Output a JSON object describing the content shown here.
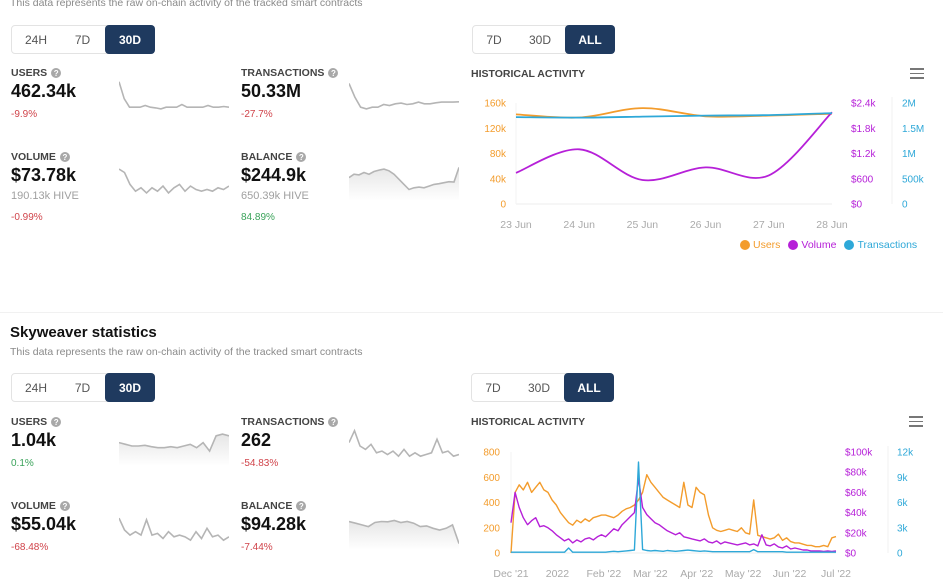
{
  "colors": {
    "users": "#f39c2c",
    "volume": "#b620d8",
    "transactions": "#2ea8d8",
    "active_button": "#1f3a5f",
    "negative": "#d0434a",
    "positive": "#3aa35a"
  },
  "section1": {
    "subtitle": "This data represents the raw on-chain activity of the tracked smart contracts",
    "period_buttons": [
      {
        "label": "24H",
        "active": false
      },
      {
        "label": "7D",
        "active": false
      },
      {
        "label": "30D",
        "active": true
      }
    ],
    "range_buttons": [
      {
        "label": "7D",
        "active": false
      },
      {
        "label": "30D",
        "active": false
      },
      {
        "label": "ALL",
        "active": true
      }
    ],
    "stats": {
      "users": {
        "label": "USERS",
        "value": "462.34k",
        "change": "-9.9%",
        "trend": "negative"
      },
      "transactions": {
        "label": "TRANSACTIONS",
        "value": "50.33M",
        "change": "-27.7%",
        "trend": "negative"
      },
      "volume": {
        "label": "VOLUME",
        "value": "$73.78k",
        "sub": "190.13k HIVE",
        "change": "-0.99%",
        "trend": "negative"
      },
      "balance": {
        "label": "BALANCE",
        "value": "$244.9k",
        "sub": "650.39k HIVE",
        "change": "84.89%",
        "trend": "positive"
      }
    },
    "historical_title": "HISTORICAL ACTIVITY",
    "menu_icon": "hamburger-menu-icon",
    "legend": [
      "Users",
      "Volume",
      "Transactions"
    ]
  },
  "section2": {
    "title": "Skyweaver statistics",
    "subtitle": "This data represents the raw on-chain activity of the tracked smart contracts",
    "period_buttons": [
      {
        "label": "24H",
        "active": false
      },
      {
        "label": "7D",
        "active": false
      },
      {
        "label": "30D",
        "active": true
      }
    ],
    "range_buttons": [
      {
        "label": "7D",
        "active": false
      },
      {
        "label": "30D",
        "active": false
      },
      {
        "label": "ALL",
        "active": true
      }
    ],
    "stats": {
      "users": {
        "label": "USERS",
        "value": "1.04k",
        "change": "0.1%",
        "trend": "positive"
      },
      "transactions": {
        "label": "TRANSACTIONS",
        "value": "262",
        "change": "-54.83%",
        "trend": "negative"
      },
      "volume": {
        "label": "VOLUME",
        "value": "$55.04k",
        "change": "-68.48%",
        "trend": "negative"
      },
      "balance": {
        "label": "BALANCE",
        "value": "$94.28k",
        "change": "-7.44%",
        "trend": "negative"
      }
    },
    "historical_title": "HISTORICAL ACTIVITY",
    "menu_icon": "hamburger-menu-icon"
  },
  "sparklines": {
    "s1_users": [
      0.95,
      0.45,
      0.2,
      0.2,
      0.2,
      0.25,
      0.2,
      0.18,
      0.15,
      0.2,
      0.2,
      0.2,
      0.28,
      0.2,
      0.2,
      0.2,
      0.2,
      0.25,
      0.2,
      0.2,
      0.22,
      0.2
    ],
    "s1_transactions": [
      0.9,
      0.5,
      0.2,
      0.15,
      0.2,
      0.2,
      0.28,
      0.25,
      0.3,
      0.32,
      0.28,
      0.3,
      0.35,
      0.3,
      0.3,
      0.33,
      0.35,
      0.35,
      0.35,
      0.36
    ],
    "s1_volume": [
      0.85,
      0.75,
      0.4,
      0.2,
      0.3,
      0.15,
      0.3,
      0.2,
      0.35,
      0.15,
      0.3,
      0.4,
      0.2,
      0.35,
      0.25,
      0.2,
      0.25,
      0.2,
      0.3,
      0.25,
      0.35
    ],
    "s1_balance": [
      0.6,
      0.7,
      0.68,
      0.75,
      0.7,
      0.78,
      0.82,
      0.85,
      0.8,
      0.7,
      0.55,
      0.4,
      0.25,
      0.3,
      0.32,
      0.3,
      0.35,
      0.4,
      0.42,
      0.45,
      0.48,
      0.47,
      0.9
    ],
    "s2_users": [
      0.6,
      0.55,
      0.5,
      0.5,
      0.52,
      0.48,
      0.45,
      0.45,
      0.48,
      0.45,
      0.5,
      0.55,
      0.45,
      0.6,
      0.35,
      0.8,
      0.85,
      0.8
    ],
    "s2_transactions": [
      0.6,
      0.95,
      0.5,
      0.4,
      0.55,
      0.3,
      0.35,
      0.25,
      0.35,
      0.2,
      0.4,
      0.2,
      0.3,
      0.2,
      0.25,
      0.3,
      0.7,
      0.3,
      0.35,
      0.2,
      0.25
    ],
    "s2_volume": [
      0.85,
      0.5,
      0.35,
      0.45,
      0.35,
      0.8,
      0.35,
      0.4,
      0.25,
      0.45,
      0.3,
      0.35,
      0.3,
      0.2,
      0.45,
      0.25,
      0.55,
      0.3,
      0.35,
      0.2,
      0.3
    ],
    "s2_balance": [
      0.75,
      0.7,
      0.65,
      0.6,
      0.72,
      0.75,
      0.74,
      0.78,
      0.72,
      0.75,
      0.7,
      0.6,
      0.62,
      0.55,
      0.5,
      0.55,
      0.65,
      0.1
    ]
  },
  "chart_data": [
    {
      "type": "line",
      "title": "HISTORICAL ACTIVITY",
      "x": [
        "23 Jun",
        "24 Jun",
        "25 Jun",
        "26 Jun",
        "27 Jun",
        "28 Jun"
      ],
      "axes": {
        "users": {
          "ticks": [
            "0",
            "40k",
            "80k",
            "120k",
            "160k"
          ],
          "range": [
            0,
            160000
          ]
        },
        "volume": {
          "ticks": [
            "$0",
            "$600",
            "$1.2k",
            "$1.8k",
            "$2.4k"
          ],
          "range": [
            0,
            2400
          ]
        },
        "transactions": {
          "ticks": [
            "0",
            "500k",
            "1M",
            "1.5M",
            "2M"
          ],
          "range": [
            0,
            2000000
          ]
        }
      },
      "series": [
        {
          "name": "Users",
          "axis": "users",
          "values": [
            142000,
            137000,
            152000,
            139000,
            140000,
            143000
          ]
        },
        {
          "name": "Volume",
          "axis": "volume",
          "values": [
            740,
            1300,
            570,
            870,
            680,
            2180
          ]
        },
        {
          "name": "Transactions",
          "axis": "transactions",
          "values": [
            1720000,
            1710000,
            1730000,
            1750000,
            1760000,
            1800000
          ]
        }
      ],
      "legend": [
        "Users",
        "Volume",
        "Transactions"
      ],
      "legend_position": "bottom-right",
      "grid": false
    },
    {
      "type": "line",
      "title": "HISTORICAL ACTIVITY",
      "x_ticks": [
        "Dec '21",
        "2022",
        "Feb '22",
        "Mar '22",
        "Apr '22",
        "May '22",
        "Jun '22",
        "Jul '22"
      ],
      "axes": {
        "users": {
          "ticks": [
            "0",
            "200",
            "400",
            "600",
            "800"
          ],
          "range": [
            0,
            800
          ]
        },
        "volume": {
          "ticks": [
            "$0",
            "$20k",
            "$40k",
            "$60k",
            "$80k",
            "$100k"
          ],
          "range": [
            0,
            100000
          ]
        },
        "transactions": {
          "ticks": [
            "0",
            "3k",
            "6k",
            "9k",
            "12k"
          ],
          "range": [
            0,
            12000
          ]
        }
      },
      "series": [
        {
          "name": "Users",
          "axis": "users",
          "values": [
            0,
            480,
            540,
            500,
            560,
            480,
            520,
            560,
            500,
            480,
            420,
            380,
            320,
            280,
            240,
            220,
            260,
            240,
            270,
            250,
            280,
            290,
            300,
            300,
            290,
            280,
            300,
            330,
            350,
            360,
            380,
            420,
            480,
            620,
            560,
            520,
            480,
            440,
            420,
            400,
            380,
            360,
            560,
            380,
            360,
            520,
            480,
            460,
            300,
            200,
            180,
            170,
            180,
            190,
            180,
            170,
            200,
            160,
            150,
            420,
            140,
            130,
            120,
            110,
            120,
            150,
            100,
            120,
            90,
            80,
            80,
            70,
            60,
            60,
            50,
            50,
            60,
            50,
            120,
            130
          ]
        },
        {
          "name": "Volume",
          "axis": "volume",
          "values": [
            30000,
            60000,
            45000,
            35000,
            28000,
            32000,
            35000,
            26000,
            27000,
            25000,
            22000,
            18000,
            15000,
            12000,
            14000,
            10000,
            13000,
            11000,
            14000,
            15000,
            13000,
            16000,
            18000,
            16000,
            20000,
            24000,
            22000,
            28000,
            32000,
            36000,
            40000,
            74000,
            45000,
            38000,
            34000,
            30000,
            28000,
            25000,
            22000,
            20000,
            18000,
            20000,
            16000,
            15000,
            14000,
            13000,
            12000,
            14000,
            11000,
            10000,
            12000,
            9000,
            11000,
            10000,
            9000,
            8000,
            9000,
            10000,
            8000,
            9000,
            7000,
            18000,
            8000,
            7000,
            9000,
            6000,
            5000,
            7000,
            4000,
            5000,
            4000,
            3000,
            3000,
            2000,
            2000,
            2000,
            1500,
            2000,
            1500,
            2000
          ]
        },
        {
          "name": "Transactions",
          "axis": "transactions",
          "values": [
            100,
            100,
            100,
            100,
            100,
            100,
            100,
            100,
            100,
            100,
            100,
            100,
            100,
            100,
            600,
            100,
            100,
            100,
            100,
            100,
            100,
            100,
            100,
            100,
            150,
            200,
            150,
            200,
            250,
            300,
            350,
            10800,
            400,
            300,
            250,
            300,
            250,
            200,
            300,
            250,
            200,
            250,
            300,
            350,
            300,
            250,
            200,
            250,
            200,
            150,
            150,
            150,
            150,
            150,
            150,
            150,
            150,
            150,
            150,
            400,
            150,
            150,
            150,
            150,
            150,
            150,
            150,
            100,
            100,
            100,
            100,
            100,
            100,
            100,
            100,
            100,
            100,
            100,
            100,
            100
          ]
        }
      ],
      "legend_position": "none",
      "grid": false
    }
  ]
}
